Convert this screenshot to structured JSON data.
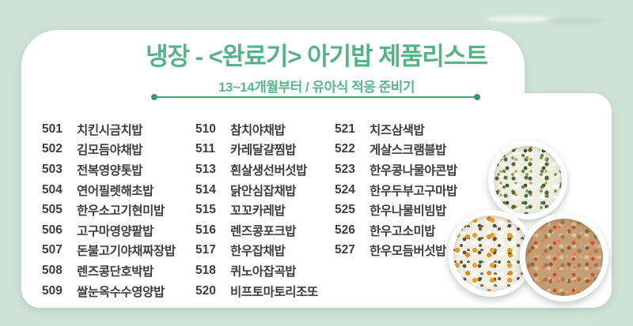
{
  "header": {
    "title": "냉장 - <완료기> 아기밥 제품리스트",
    "subtitle": "13~14개월부터 / 유아식 적응 준비기"
  },
  "colors": {
    "background": "#cee3d6",
    "card": "#ffffff",
    "title_green": "#55b385",
    "divider_green": "#44a377",
    "item_text": "#3e3e3e"
  },
  "product_list": {
    "columns": [
      {
        "items": [
          {
            "code": "501",
            "name": "치킨시금치밥"
          },
          {
            "code": "502",
            "name": "김모듬야채밥"
          },
          {
            "code": "503",
            "name": "전복영양톳밥"
          },
          {
            "code": "504",
            "name": "연어필렛해초밥"
          },
          {
            "code": "505",
            "name": "한우소고기현미밥"
          },
          {
            "code": "506",
            "name": "고구마영양팥밥"
          },
          {
            "code": "507",
            "name": "돈불고기야채짜장밥"
          },
          {
            "code": "508",
            "name": "렌즈콩단호박밥"
          },
          {
            "code": "509",
            "name": "쌀눈옥수수영양밥"
          }
        ]
      },
      {
        "items": [
          {
            "code": "510",
            "name": "참치야채밥"
          },
          {
            "code": "511",
            "name": "카레달걀찜밥"
          },
          {
            "code": "513",
            "name": "흰살생선버섯밥"
          },
          {
            "code": "514",
            "name": "닭안심잡채밥"
          },
          {
            "code": "515",
            "name": "꼬꼬카레밥"
          },
          {
            "code": "516",
            "name": "렌즈콩포크밥"
          },
          {
            "code": "517",
            "name": "한우잡채밥"
          },
          {
            "code": "518",
            "name": "퀴노아잡곡밥"
          },
          {
            "code": "520",
            "name": "비프토마토리조또"
          }
        ]
      },
      {
        "items": [
          {
            "code": "521",
            "name": "치즈삼색밥"
          },
          {
            "code": "522",
            "name": "게살스크램블밥"
          },
          {
            "code": "523",
            "name": "한우콩나물야콘밥"
          },
          {
            "code": "524",
            "name": "한우두부고구마밥"
          },
          {
            "code": "525",
            "name": "한우나물비빔밥"
          },
          {
            "code": "526",
            "name": "한우고소미밥"
          },
          {
            "code": "527",
            "name": "한우모듬버섯밥"
          }
        ]
      }
    ]
  },
  "photos": [
    {
      "name": "vegetable-rice-bowl"
    },
    {
      "name": "carrot-lentil-rice-bowl"
    },
    {
      "name": "beef-tomato-risotto-bowl"
    }
  ]
}
